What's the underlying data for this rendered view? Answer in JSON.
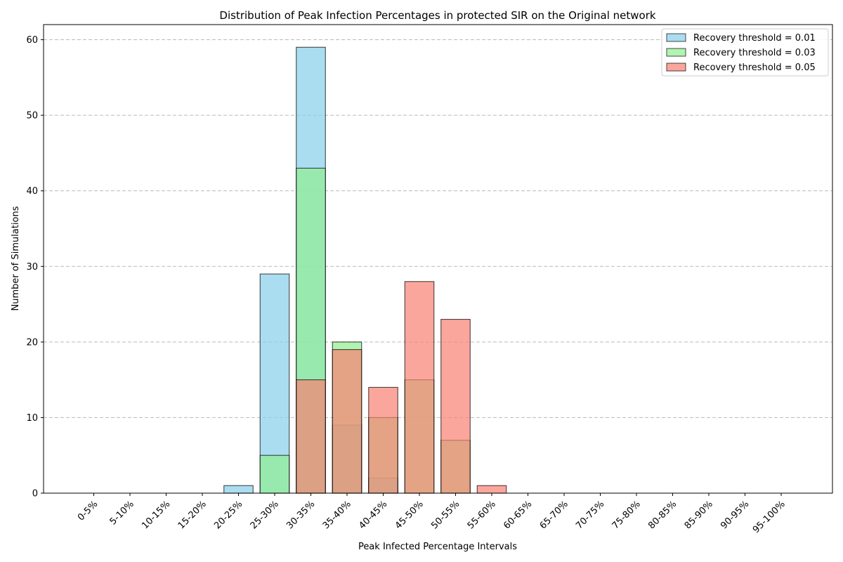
{
  "chart_data": {
    "type": "bar",
    "title": "Distribution of Peak Infection Percentages in protected SIR on the Original network",
    "xlabel": "Peak Infected Percentage Intervals",
    "ylabel": "Number of Simulations",
    "ylim": [
      0,
      62
    ],
    "yticks": [
      0,
      10,
      20,
      30,
      40,
      50,
      60
    ],
    "grid": "y-dashed",
    "legend_position": "top-right",
    "categories": [
      "0-5%",
      "5-10%",
      "10-15%",
      "15-20%",
      "20-25%",
      "25-30%",
      "30-35%",
      "35-40%",
      "40-45%",
      "45-50%",
      "50-55%",
      "55-60%",
      "60-65%",
      "65-70%",
      "70-75%",
      "75-80%",
      "80-85%",
      "85-90%",
      "90-95%",
      "95-100%"
    ],
    "series": [
      {
        "name": "Recovery threshold = 0.01",
        "color": "#87ceeb",
        "values": [
          0,
          0,
          0,
          0,
          1,
          29,
          59,
          9,
          2,
          0,
          0,
          0,
          0,
          0,
          0,
          0,
          0,
          0,
          0,
          0
        ]
      },
      {
        "name": "Recovery threshold = 0.03",
        "color": "#90ee90",
        "values": [
          0,
          0,
          0,
          0,
          0,
          5,
          43,
          20,
          10,
          15,
          7,
          0,
          0,
          0,
          0,
          0,
          0,
          0,
          0,
          0
        ]
      },
      {
        "name": "Recovery threshold = 0.05",
        "color": "#fa8072",
        "values": [
          0,
          0,
          0,
          0,
          0,
          0,
          15,
          19,
          14,
          28,
          23,
          1,
          0,
          0,
          0,
          0,
          0,
          0,
          0,
          0
        ]
      }
    ]
  }
}
